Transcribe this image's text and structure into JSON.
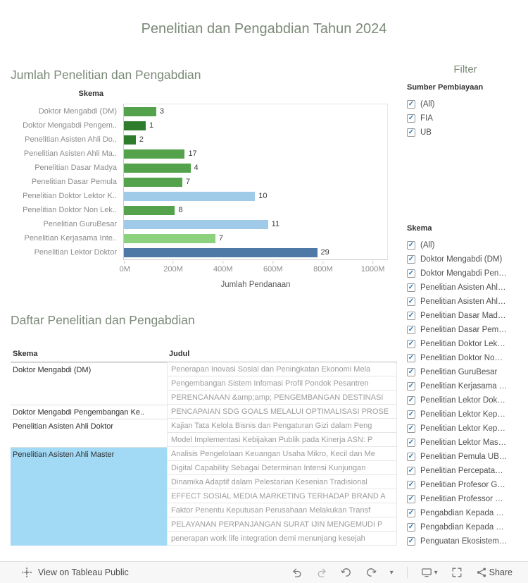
{
  "title": "Penelitian dan Pengabdian Tahun 2024",
  "colors": {
    "title_text": "#7b8a78",
    "highlight_row": "#a2d9f5",
    "check_blue": "#2a79b5"
  },
  "icons": {
    "check": "✓",
    "caret_down": "▾"
  },
  "chart_data": {
    "type": "bar",
    "orientation": "horizontal",
    "title": "Jumlah Penelitian dan Pengabdian",
    "legend_title": "Skema",
    "xlabel": "Jumlah Pendanaan",
    "xlim": [
      0,
      1000
    ],
    "x_ticks": [
      "0M",
      "200M",
      "400M",
      "600M",
      "800M",
      "1000M"
    ],
    "grid": false,
    "palette": {
      "green": "#54A24B",
      "dark_green": "#2d7d2d",
      "light_green": "#8CD17D",
      "light_blue": "#A0CBE8",
      "steel_blue": "#4E79A7"
    },
    "rows": [
      {
        "label": "Doktor Mengabdi (DM)",
        "count": 3,
        "funding_m": 130,
        "color": "green"
      },
      {
        "label": "Doktor Mengabdi Pengem..",
        "count": 1,
        "funding_m": 88,
        "color": "dark_green"
      },
      {
        "label": "Penelitian Asisten Ahli Do..",
        "count": 2,
        "funding_m": 48,
        "color": "dark_green"
      },
      {
        "label": "Penelitian Asisten Ahli Ma..",
        "count": 17,
        "funding_m": 245,
        "color": "green"
      },
      {
        "label": "Penelitian Dasar Madya",
        "count": 4,
        "funding_m": 268,
        "color": "green"
      },
      {
        "label": "Penelitian Dasar Pemula",
        "count": 7,
        "funding_m": 235,
        "color": "green"
      },
      {
        "label": "Penelitian Doktor Lektor K..",
        "count": 10,
        "funding_m": 528,
        "color": "light_blue"
      },
      {
        "label": "Penelitian Doktor Non Lek..",
        "count": 8,
        "funding_m": 205,
        "color": "green"
      },
      {
        "label": "Penelitian GuruBesar",
        "count": 11,
        "funding_m": 580,
        "color": "light_blue"
      },
      {
        "label": "Penelitian Kerjasama Inte..",
        "count": 7,
        "funding_m": 368,
        "color": "light_green"
      },
      {
        "label": "Penelitian Lektor Doktor",
        "count": 29,
        "funding_m": 778,
        "color": "steel_blue"
      }
    ]
  },
  "table": {
    "title": "Daftar Penelitian dan Pengabdian",
    "columns": [
      "Skema",
      "Judul"
    ],
    "rows": [
      {
        "skema": "Doktor Mengabdi (DM)",
        "judul": "Penerapan Inovasi Sosial dan Peningkatan Ekonomi Mela"
      },
      {
        "skema": "",
        "judul": "Pengembangan Sistem Infomasi Profil Pondok Pesantren"
      },
      {
        "skema": "",
        "judul": "PERENCANAAN &amp;amp; PENGEMBANGAN DESTINASI"
      },
      {
        "skema": "Doktor Mengabdi Pengembangan Ke..",
        "judul": "PENCAPAIAN SDG GOALS MELALUI OPTIMALISASI PROSE"
      },
      {
        "skema": "Penelitian Asisten Ahli Doktor",
        "judul": "Kajian Tata Kelola Bisnis dan Pengaturan Gizi dalam Peng"
      },
      {
        "skema": "",
        "judul": "Model Implementasi Kebijakan Publik pada Kinerja ASN: P"
      },
      {
        "skema": "Penelitian Asisten Ahli Master",
        "judul": "Analisis Pengelolaan Keuangan Usaha Mikro, Kecil dan Me"
      },
      {
        "skema": "",
        "judul": "Digital Capability Sebagai Determinan Intensi Kunjungan"
      },
      {
        "skema": "",
        "judul": "Dinamika Adaptif dalam Pelestarian Kesenian Tradisional"
      },
      {
        "skema": "",
        "judul": "EFFECT SOSIAL MEDIA MARKETING  TERHADAP BRAND A"
      },
      {
        "skema": "",
        "judul": "Faktor Penentu Keputusan Perusahaan Melakukan Transf"
      },
      {
        "skema": "",
        "judul": "PELAYANAN PERPANJANGAN SURAT IJIN MENGEMUDI P"
      },
      {
        "skema": "",
        "judul": "penerapan work life integration demi menunjang kesejah"
      }
    ]
  },
  "filters": {
    "title": "Filter",
    "groups": [
      {
        "label": "Sumber  Pembiayaan",
        "items": [
          {
            "label": "(All)",
            "checked": true
          },
          {
            "label": "FIA",
            "checked": true
          },
          {
            "label": "UB",
            "checked": true
          }
        ]
      },
      {
        "label": "Skema",
        "items": [
          {
            "label": "(All)",
            "checked": true
          },
          {
            "label": "Doktor Mengabdi (DM)",
            "checked": true
          },
          {
            "label": "Doktor Mengabdi Pen…",
            "checked": true
          },
          {
            "label": "Penelitian Asisten Ahl…",
            "checked": true
          },
          {
            "label": "Penelitian Asisten Ahl…",
            "checked": true
          },
          {
            "label": "Penelitian Dasar Mad…",
            "checked": true
          },
          {
            "label": "Penelitian Dasar Pem…",
            "checked": true
          },
          {
            "label": "Penelitian Doktor Lek…",
            "checked": true
          },
          {
            "label": "Penelitian Doktor No…",
            "checked": true
          },
          {
            "label": "Penelitian GuruBesar",
            "checked": true
          },
          {
            "label": "Penelitian Kerjasama …",
            "checked": true
          },
          {
            "label": "Penelitian Lektor Dok…",
            "checked": true
          },
          {
            "label": "Penelitian Lektor Kep…",
            "checked": true
          },
          {
            "label": "Penelitian Lektor Kep…",
            "checked": true
          },
          {
            "label": "Penelitian Lektor Mas…",
            "checked": true
          },
          {
            "label": "Penelitian Pemula UB…",
            "checked": true
          },
          {
            "label": "Penelitian Percepata…",
            "checked": true
          },
          {
            "label": "Penelitian Profesor G…",
            "checked": true
          },
          {
            "label": "Penelitian Professor …",
            "checked": true
          },
          {
            "label": "Pengabdian Kepada …",
            "checked": true
          },
          {
            "label": "Pengabdian Kepada …",
            "checked": true
          },
          {
            "label": "Penguatan Ekosistem…",
            "checked": true
          }
        ]
      }
    ]
  },
  "toolbar": {
    "view_label": "View on Tableau Public",
    "share_label": "Share"
  }
}
